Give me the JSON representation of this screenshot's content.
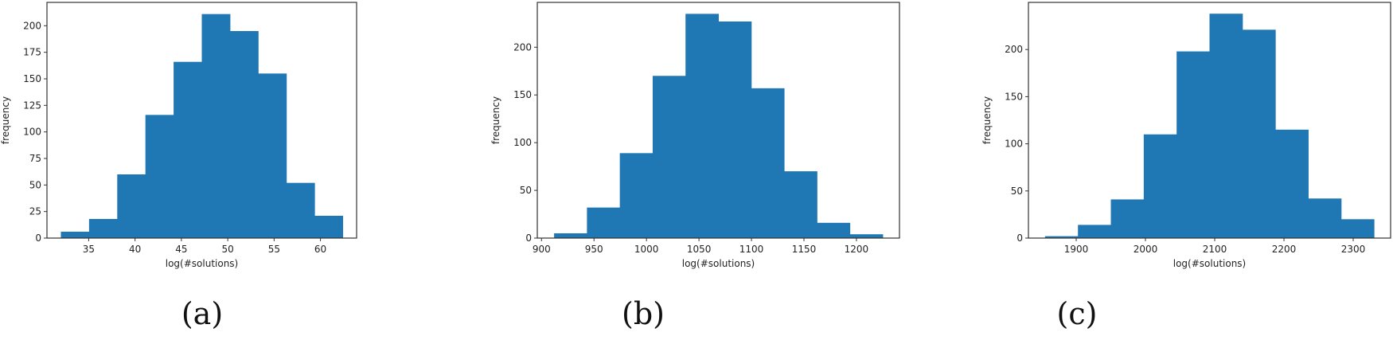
{
  "figure": {
    "panels": [
      {
        "id": "a",
        "label": "(a)"
      },
      {
        "id": "b",
        "label": "(b)"
      },
      {
        "id": "c",
        "label": "(c)"
      }
    ]
  },
  "chart_data": [
    {
      "type": "bar",
      "subtype": "histogram",
      "panel_label": "(a)",
      "title": "",
      "xlabel": "log(#solutions)",
      "ylabel": "frequency",
      "bin_edges": [
        32.0,
        35.04,
        38.08,
        41.12,
        44.16,
        47.2,
        50.24,
        53.28,
        56.32,
        59.36,
        62.4
      ],
      "values": [
        6,
        18,
        60,
        116,
        166,
        211,
        195,
        155,
        52,
        21
      ],
      "xticks": [
        35,
        40,
        45,
        50,
        55,
        60
      ],
      "yticks": [
        0,
        25,
        50,
        75,
        100,
        125,
        150,
        175,
        200
      ],
      "xlim": [
        30.5,
        63.9
      ],
      "ylim": [
        0,
        222
      ],
      "color": "#1f77b4",
      "grid": false,
      "legend": null
    },
    {
      "type": "bar",
      "subtype": "histogram",
      "panel_label": "(b)",
      "title": "",
      "xlabel": "log(#solutions)",
      "ylabel": "frequency",
      "bin_edges": [
        912,
        943.3,
        974.6,
        1005.9,
        1037.2,
        1068.5,
        1099.8,
        1131.1,
        1162.4,
        1193.7,
        1225
      ],
      "values": [
        5,
        32,
        89,
        170,
        235,
        227,
        157,
        70,
        16,
        4
      ],
      "xticks": [
        900,
        950,
        1000,
        1050,
        1100,
        1150,
        1200
      ],
      "yticks": [
        0,
        50,
        100,
        150,
        200
      ],
      "xlim": [
        896,
        1241
      ],
      "ylim": [
        0,
        247
      ],
      "color": "#1f77b4",
      "grid": false,
      "legend": null
    },
    {
      "type": "bar",
      "subtype": "histogram",
      "panel_label": "(c)",
      "title": "",
      "xlabel": "log(#solutions)",
      "ylabel": "frequency",
      "bin_edges": [
        1855,
        1902.5,
        1950,
        1997.5,
        2045,
        2092.5,
        2140,
        2187.5,
        2235,
        2282.5,
        2330
      ],
      "values": [
        2,
        14,
        41,
        110,
        198,
        238,
        221,
        115,
        42,
        20
      ],
      "xticks": [
        1900,
        2000,
        2100,
        2200,
        2300
      ],
      "yticks": [
        0,
        50,
        100,
        150,
        200
      ],
      "xlim": [
        1831,
        2354
      ],
      "ylim": [
        0,
        250
      ],
      "color": "#1f77b4",
      "grid": false,
      "legend": null
    }
  ]
}
